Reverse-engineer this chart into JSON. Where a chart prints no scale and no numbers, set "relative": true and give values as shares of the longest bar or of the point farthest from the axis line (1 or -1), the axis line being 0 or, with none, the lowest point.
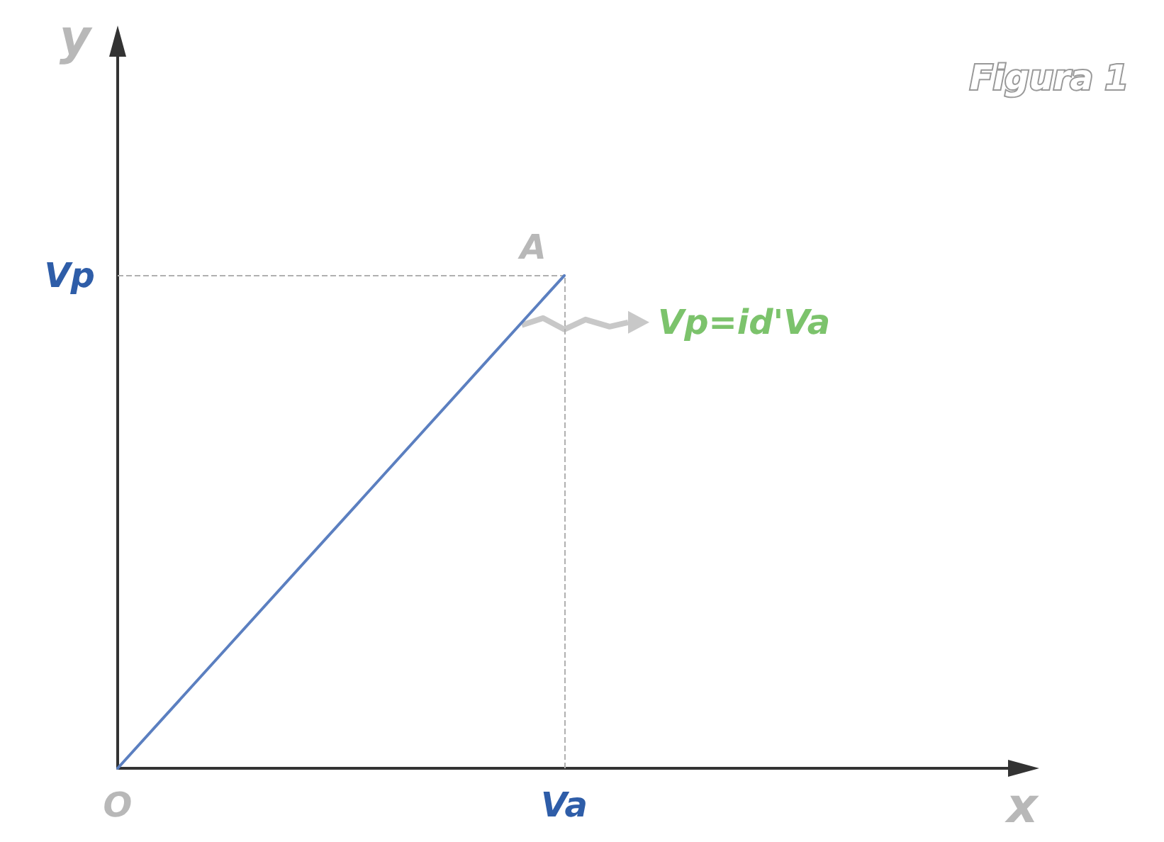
{
  "chart_data": {
    "type": "line",
    "title": "Figura 1",
    "xlabel": "x",
    "ylabel": "y",
    "relative": true,
    "categories": [
      "O",
      "Va",
      null
    ],
    "series": [
      {
        "color": "#5b7fc0",
        "values": [
          0,
          1,
          null
        ]
      }
    ],
    "ref_lines": [
      {
        "axis": "x",
        "value": "Va",
        "color": "#b0b0b0",
        "line_style": "dashed"
      },
      {
        "axis": "y",
        "value": 1,
        "color": "#b0b0b0",
        "line_style": "dashed"
      }
    ],
    "annotations": [
      "A",
      "Vp",
      "Vp=id'Va"
    ],
    "grid": false,
    "marker": "none",
    "line_style": "solid"
  }
}
